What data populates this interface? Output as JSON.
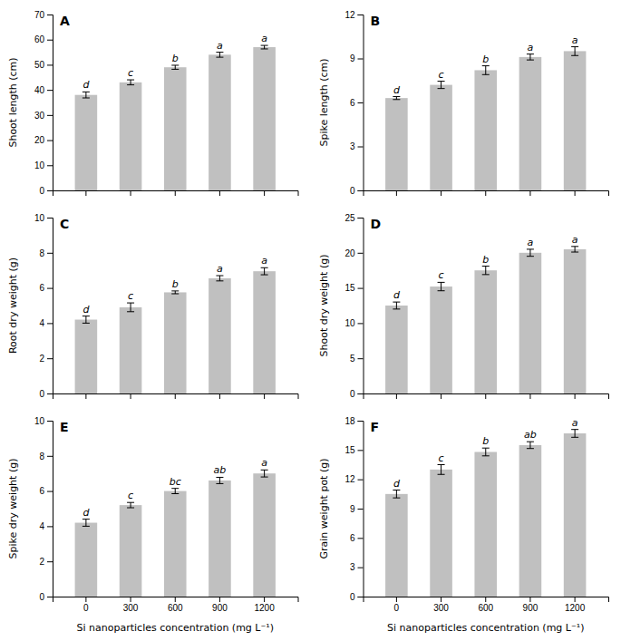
{
  "chart_data": [
    {
      "type": "bar",
      "title": "A",
      "ylabel": "Shoot length (cm)",
      "categories": [
        "0",
        "300",
        "600",
        "900",
        "1200"
      ],
      "values": [
        38.0,
        43.0,
        49.0,
        54.0,
        57.0
      ],
      "errors": [
        1.2,
        1.0,
        0.8,
        1.0,
        0.7
      ],
      "annotations": [
        "d",
        "c",
        "b",
        "a",
        "a"
      ],
      "color": "#c0c0c0",
      "ylim": [
        0,
        70
      ],
      "yticks": [
        0,
        10,
        20,
        30,
        40,
        50,
        60,
        70
      ],
      "tick_labels": "y"
    },
    {
      "type": "bar",
      "title": "B",
      "ylabel": "Spike length (cm)",
      "categories": [
        "0",
        "300",
        "600",
        "900",
        "1200"
      ],
      "values": [
        6.3,
        7.2,
        8.2,
        9.1,
        9.5
      ],
      "errors": [
        0.1,
        0.25,
        0.3,
        0.2,
        0.3
      ],
      "annotations": [
        "d",
        "c",
        "b",
        "a",
        "a"
      ],
      "color": "#c0c0c0",
      "ylim": [
        0,
        12
      ],
      "yticks": [
        0,
        3,
        6,
        9,
        12
      ],
      "tick_labels": "y"
    },
    {
      "type": "bar",
      "title": "C",
      "ylabel": "Root dry weight (g)",
      "categories": [
        "0",
        "300",
        "600",
        "900",
        "1200"
      ],
      "values": [
        4.2,
        4.9,
        5.75,
        6.55,
        6.95
      ],
      "errors": [
        0.2,
        0.25,
        0.08,
        0.15,
        0.2
      ],
      "annotations": [
        "d",
        "c",
        "b",
        "a",
        "a"
      ],
      "color": "#c0c0c0",
      "ylim": [
        0,
        10
      ],
      "yticks": [
        0,
        2,
        4,
        6,
        8,
        10
      ],
      "tick_labels": "y"
    },
    {
      "type": "bar",
      "title": "D",
      "ylabel": "Shoot dry weight (g)",
      "categories": [
        "0",
        "300",
        "600",
        "900",
        "1200"
      ],
      "values": [
        12.5,
        15.2,
        17.5,
        20.0,
        20.5
      ],
      "errors": [
        0.5,
        0.6,
        0.6,
        0.5,
        0.4
      ],
      "annotations": [
        "d",
        "c",
        "b",
        "a",
        "a"
      ],
      "color": "#c0c0c0",
      "ylim": [
        0,
        25
      ],
      "yticks": [
        0,
        5,
        10,
        15,
        20,
        25
      ],
      "tick_labels": "y"
    },
    {
      "type": "bar",
      "title": "E",
      "ylabel": "Spike dry weight (g)",
      "xlabel": "Si nanoparticles concentration (mg L⁻¹)",
      "categories": [
        "0",
        "300",
        "600",
        "900",
        "1200"
      ],
      "values": [
        4.2,
        5.2,
        6.0,
        6.6,
        7.0
      ],
      "errors": [
        0.2,
        0.15,
        0.15,
        0.18,
        0.2
      ],
      "annotations": [
        "d",
        "c",
        "bc",
        "ab",
        "a"
      ],
      "color": "#c0c0c0",
      "ylim": [
        0,
        10
      ],
      "yticks": [
        0,
        2,
        4,
        6,
        8,
        10
      ]
    },
    {
      "type": "bar",
      "title": "F",
      "ylabel": "Grain weight pot (g)",
      "xlabel": "Si nanoparticles concentration (mg L⁻¹)",
      "categories": [
        "0",
        "300",
        "600",
        "900",
        "1200"
      ],
      "values": [
        10.5,
        13.0,
        14.8,
        15.5,
        16.7
      ],
      "errors": [
        0.4,
        0.5,
        0.4,
        0.35,
        0.4
      ],
      "annotations": [
        "d",
        "c",
        "b",
        "ab",
        "a"
      ],
      "color": "#c0c0c0",
      "ylim": [
        0,
        18
      ],
      "yticks": [
        0,
        3,
        6,
        9,
        12,
        15,
        18
      ]
    }
  ]
}
